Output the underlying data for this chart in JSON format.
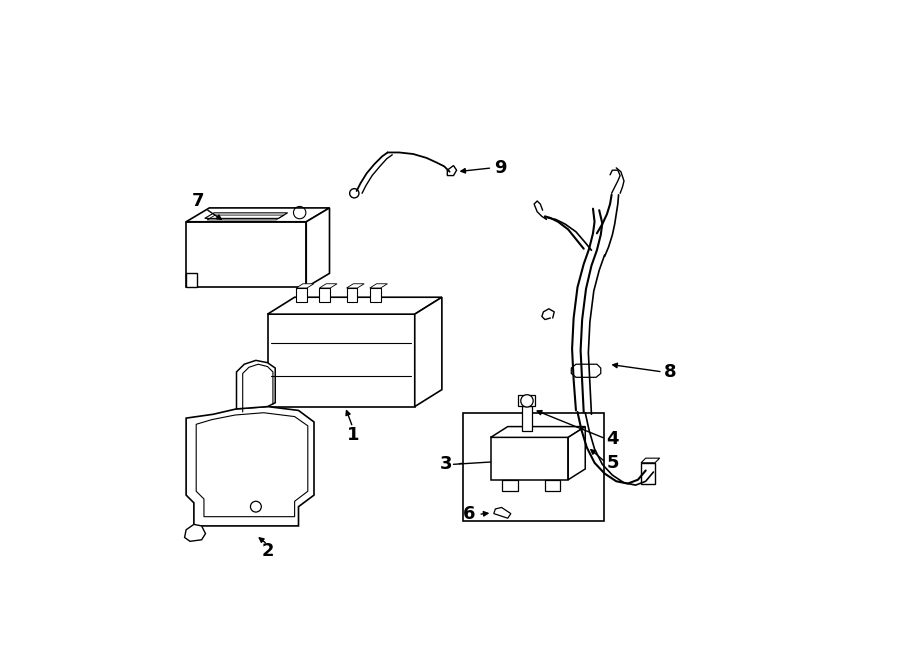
{
  "bg_color": "#ffffff",
  "line_color": "#000000",
  "figure_width": 9.0,
  "figure_height": 6.61,
  "dpi": 100
}
